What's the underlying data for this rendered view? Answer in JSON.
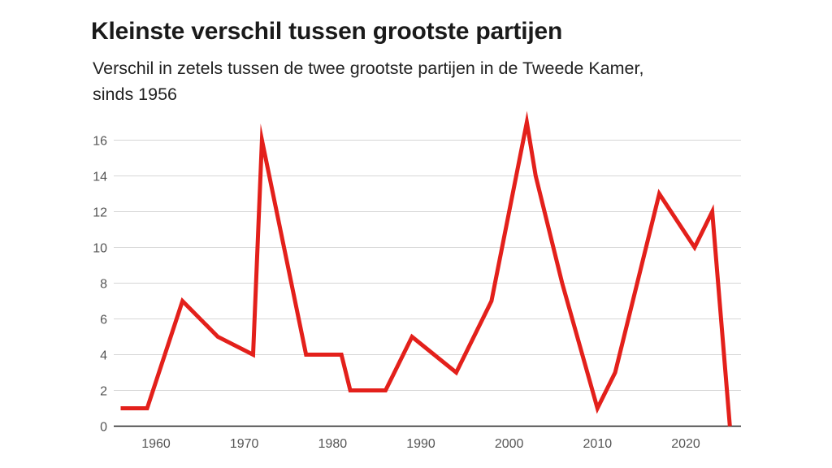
{
  "chart_data": {
    "type": "line",
    "title": "Kleinste verschil tussen grootste partijen",
    "subtitle": "Verschil in zetels tussen de twee grootste partijen in de Tweede Kamer, sinds 1956",
    "xlabel": "",
    "ylabel": "",
    "xlim": [
      1956,
      2025
    ],
    "ylim": [
      0,
      17
    ],
    "x_ticks": [
      1960,
      1970,
      1980,
      1990,
      2000,
      2010,
      2020
    ],
    "y_ticks": [
      0,
      2,
      4,
      6,
      8,
      10,
      12,
      14,
      16
    ],
    "grid": true,
    "line_color": "#e3201b",
    "series": [
      {
        "name": "Verschil in zetels",
        "x": [
          1956,
          1959,
          1963,
          1967,
          1971,
          1972,
          1977,
          1981,
          1982,
          1986,
          1989,
          1994,
          1998,
          2002,
          2003,
          2006,
          2010,
          2012,
          2017,
          2021,
          2023,
          2025
        ],
        "values": [
          1,
          1,
          7,
          5,
          4,
          16,
          4,
          4,
          2,
          2,
          5,
          3,
          7,
          17,
          14,
          8,
          1,
          3,
          13,
          10,
          12,
          0
        ]
      }
    ]
  }
}
